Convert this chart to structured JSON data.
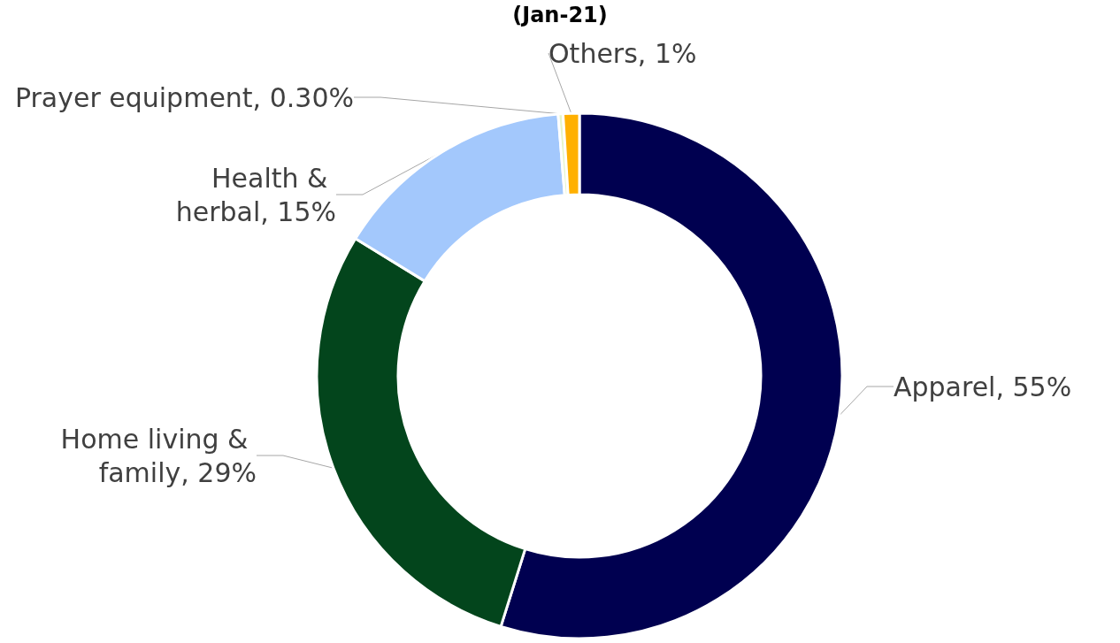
{
  "chart_data": {
    "type": "donut",
    "title": "(Jan-21)",
    "categories": [
      "Apparel",
      "Home living & family",
      "Health & herbal",
      "Prayer equipment",
      "Others"
    ],
    "values": [
      55,
      29,
      15,
      0.3,
      1
    ],
    "value_labels": [
      "55%",
      "29%",
      "15%",
      "0.30%",
      "1%"
    ],
    "colors": [
      "#000050",
      "#03451c",
      "#a3c8fc",
      "#e6f5c8",
      "#ffb000"
    ],
    "legend": false
  }
}
